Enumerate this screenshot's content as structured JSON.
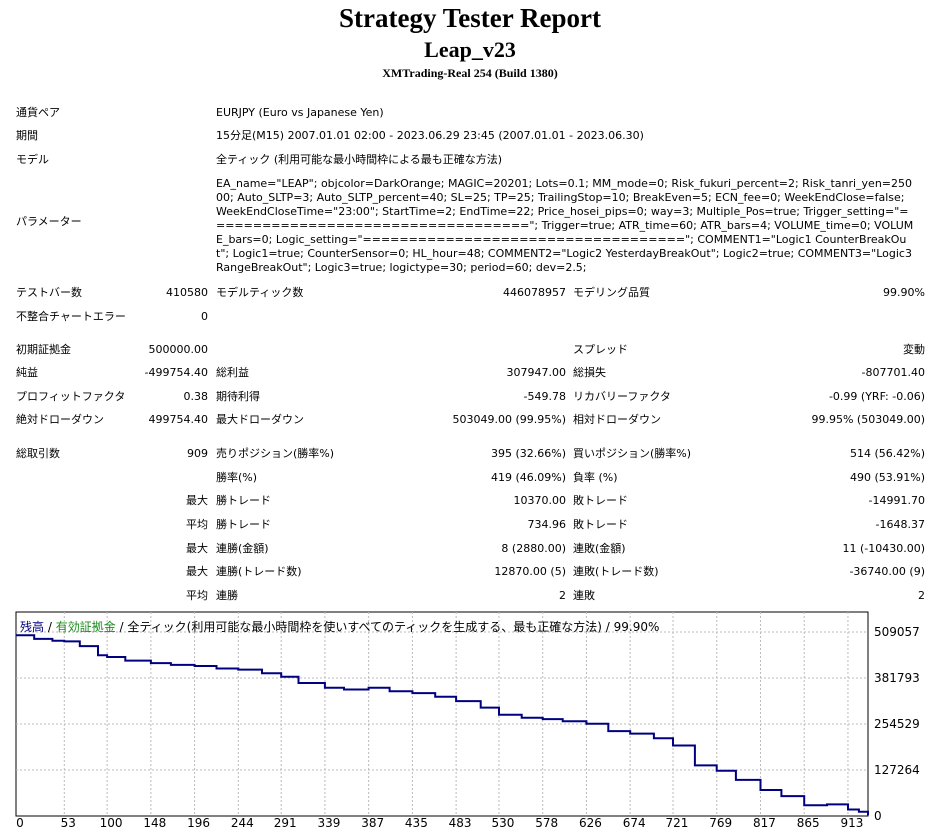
{
  "header": {
    "title": "Strategy Tester Report",
    "ea": "Leap_v23",
    "server": "XMTrading-Real 254 (Build 1380)"
  },
  "info": {
    "pair_label": "通貨ペア",
    "pair_value": "EURJPY (Euro vs Japanese Yen)",
    "period_label": "期間",
    "period_value": "15分足(M15) 2007.01.01 02:00 - 2023.06.29 23:45 (2007.01.01 - 2023.06.30)",
    "model_label": "モデル",
    "model_value": "全ティック (利用可能な最小時間枠による最も正確な方法)",
    "params_label": "パラメーター",
    "params_value": "EA_name=\"LEAP\"; objcolor=DarkOrange; MAGIC=20201; Lots=0.1; MM_mode=0; Risk_fukuri_percent=2; Risk_tanri_yen=25000; Auto_SLTP=3; Auto_SLTP_percent=40; SL=25; TP=25; TrailingStop=10; BreakEven=5; ECN_fee=0; WeekEndClose=false; WeekEndCloseTime=\"23:00\"; StartTime=2; EndTime=22; Price_hosei_pips=0; way=3; Multiple_Pos=true; Trigger_setting=\"===================================\"; Trigger=true; ATR_time=60; ATR_bars=4; VOLUME_time=0; VOLUME_bars=0; Logic_setting=\"===================================\"; COMMENT1=\"Logic1 CounterBreakOut\"; Logic1=true; CounterSensor=0; HL_hour=48; COMMENT2=\"Logic2 YesterdayBreakOut\"; Logic2=true; COMMENT3=\"Logic3 RangeBreakOut\"; Logic3=true; logictype=30; period=60; dev=2.5;"
  },
  "stats": {
    "bars_label": "テストバー数",
    "bars_value": "410580",
    "ticks_label": "モデルティック数",
    "ticks_value": "446078957",
    "quality_label": "モデリング品質",
    "quality_value": "99.90%",
    "mismatch_label": "不整合チャートエラー",
    "mismatch_value": "0",
    "deposit_label": "初期証拠金",
    "deposit_value": "500000.00",
    "spread_label": "スプレッド",
    "spread_value": "変動",
    "net_label": "純益",
    "net_value": "-499754.40",
    "gross_profit_label": "総利益",
    "gross_profit_value": "307947.00",
    "gross_loss_label": "総損失",
    "gross_loss_value": "-807701.40",
    "pf_label": "プロフィットファクタ",
    "pf_value": "0.38",
    "expected_label": "期待利得",
    "expected_value": "-549.78",
    "recovery_label": "リカバリーファクタ",
    "recovery_value": "-0.99 (YRF: -0.06)",
    "abs_dd_label": "絶対ドローダウン",
    "abs_dd_value": "499754.40",
    "max_dd_label": "最大ドローダウン",
    "max_dd_value": "503049.00 (99.95%)",
    "rel_dd_label": "相対ドローダウン",
    "rel_dd_value": "99.95% (503049.00)",
    "trades_label": "総取引数",
    "trades_value": "909",
    "short_label": "売りポジション(勝率%)",
    "short_value": "395 (32.66%)",
    "long_label": "買いポジション(勝率%)",
    "long_value": "514 (56.42%)",
    "win_rate_label": "勝率(%)",
    "win_rate_value": "419 (46.09%)",
    "loss_rate_label": "負率 (%)",
    "loss_rate_value": "490 (53.91%)",
    "max1": "最大",
    "largest_win_label": "勝トレード",
    "largest_win_value": "10370.00",
    "largest_loss_label": "敗トレード",
    "largest_loss_value": "-14991.70",
    "avg1": "平均",
    "avg_win_label": "勝トレード",
    "avg_win_value": "734.96",
    "avg_loss_label": "敗トレード",
    "avg_loss_value": "-1648.37",
    "max2": "最大",
    "cons_wins_money_label": "連勝(金額)",
    "cons_wins_money_value": "8 (2880.00)",
    "cons_losses_money_label": "連敗(金額)",
    "cons_losses_money_value": "11 (-10430.00)",
    "max3": "最大",
    "cons_wins_count_label": "連勝(トレード数)",
    "cons_wins_count_value": "12870.00 (5)",
    "cons_losses_count_label": "連敗(トレード数)",
    "cons_losses_count_value": "-36740.00 (9)",
    "avg2": "平均",
    "avg_cons_wins_label": "連勝",
    "avg_cons_wins_value": "2",
    "avg_cons_losses_label": "連敗",
    "avg_cons_losses_value": "2"
  },
  "chart_head": {
    "balance": "残高",
    "sep1": " / ",
    "equity": "有効証拠金",
    "sep2": " / ",
    "rest": "全ティック(利用可能な最小時間枠を使いすべてのティックを生成する、最も正確な方法) / 99.90%",
    "balance_color": "#000080",
    "equity_color": "#1a8c1a"
  },
  "chart_data": {
    "type": "line",
    "title": "",
    "xlabel": "",
    "ylabel": "",
    "xlim": [
      0,
      935
    ],
    "ylim": [
      0,
      509057
    ],
    "x_ticks": [
      0,
      53,
      100,
      148,
      196,
      244,
      291,
      339,
      387,
      435,
      483,
      530,
      578,
      626,
      674,
      721,
      769,
      817,
      865,
      913
    ],
    "y_ticks": [
      0,
      127264,
      254529,
      381793,
      509057
    ],
    "grid": true,
    "line_color": "#000080",
    "series": [
      {
        "name": "残高",
        "x": [
          0,
          20,
          40,
          53,
          70,
          90,
          100,
          120,
          148,
          170,
          196,
          220,
          244,
          270,
          291,
          310,
          339,
          360,
          387,
          410,
          435,
          460,
          483,
          510,
          530,
          555,
          578,
          600,
          626,
          650,
          674,
          700,
          721,
          745,
          769,
          790,
          817,
          840,
          865,
          890,
          913,
          925,
          935
        ],
        "y": [
          500000,
          490000,
          485000,
          483000,
          470000,
          445000,
          440000,
          430000,
          423000,
          418000,
          415000,
          408000,
          405000,
          395000,
          385000,
          368000,
          355000,
          350000,
          355000,
          345000,
          340000,
          330000,
          318000,
          300000,
          280000,
          272000,
          268000,
          262000,
          255000,
          235000,
          228000,
          215000,
          195000,
          140000,
          125000,
          100000,
          72000,
          55000,
          30000,
          32000,
          18000,
          12000,
          2000
        ]
      }
    ]
  }
}
